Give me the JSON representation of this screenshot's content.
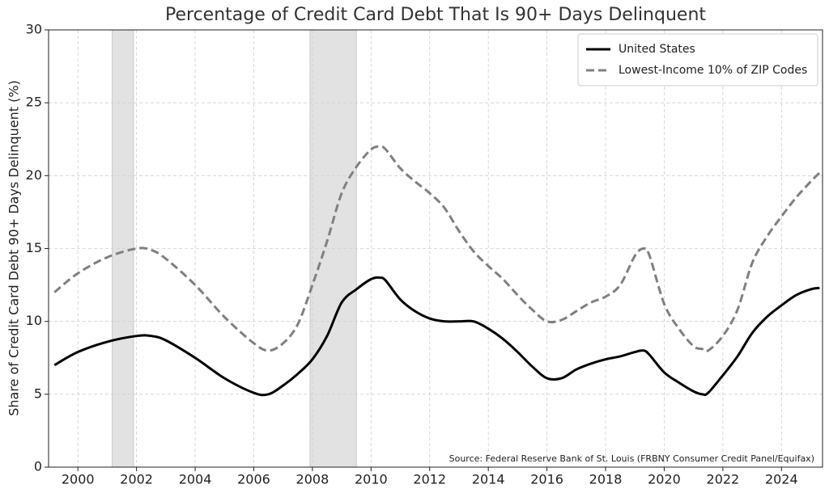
{
  "chart_data": {
    "type": "line",
    "title": "Percentage of Credit Card Debt That Is 90+ Days Delinquent",
    "y_label": "Share of Credit Card Debt 90+ Days Delinquent (%)",
    "source": "Source: Federal Reserve Bank of St. Louis (FRBNY Consumer Credit Panel/Equifax)",
    "x": [
      1999.2,
      2000,
      2001,
      2002,
      2002.5,
      2003,
      2004,
      2005,
      2006,
      2006.5,
      2007,
      2007.5,
      2008,
      2008.5,
      2009,
      2009.5,
      2010,
      2010.3,
      2010.5,
      2011,
      2011.5,
      2012,
      2012.5,
      2013,
      2013.5,
      2014,
      2014.5,
      2015,
      2015.5,
      2016,
      2016.5,
      2017,
      2017.5,
      2018,
      2018.5,
      2019,
      2019.3,
      2019.5,
      2020,
      2020.5,
      2021,
      2021.3,
      2021.5,
      2022,
      2022.5,
      2023,
      2023.5,
      2024,
      2024.5,
      2025,
      2025.3
    ],
    "series": [
      {
        "name": "United States",
        "color": "#000000",
        "dash": "solid",
        "values": [
          7.0,
          7.9,
          8.6,
          9.0,
          9.0,
          8.7,
          7.5,
          6.1,
          5.1,
          5.0,
          5.6,
          6.4,
          7.4,
          9.0,
          11.3,
          12.2,
          12.9,
          13.0,
          12.8,
          11.5,
          10.7,
          10.2,
          10.0,
          10.0,
          10.0,
          9.5,
          8.8,
          7.9,
          6.9,
          6.1,
          6.1,
          6.7,
          7.1,
          7.4,
          7.6,
          7.9,
          8.0,
          7.7,
          6.5,
          5.8,
          5.2,
          5.0,
          5.1,
          6.3,
          7.6,
          9.2,
          10.3,
          11.1,
          11.8,
          12.2,
          12.3
        ]
      },
      {
        "name": "Lowest-Income 10% of ZIP Codes",
        "color": "#808080",
        "dash": "dashed",
        "values": [
          12.0,
          13.3,
          14.4,
          15.0,
          14.9,
          14.3,
          12.5,
          10.3,
          8.5,
          8.0,
          8.5,
          9.8,
          12.5,
          15.5,
          18.8,
          20.6,
          21.8,
          22.0,
          21.8,
          20.5,
          19.6,
          18.8,
          17.8,
          16.2,
          14.8,
          13.8,
          12.9,
          11.8,
          10.8,
          10.0,
          10.1,
          10.7,
          11.3,
          11.7,
          12.5,
          14.5,
          15.0,
          14.5,
          11.2,
          9.5,
          8.3,
          8.1,
          8.0,
          9.0,
          10.8,
          14.0,
          15.8,
          17.2,
          18.5,
          19.6,
          20.2
        ]
      }
    ],
    "shaded_periods": [
      [
        2001.17,
        2001.9
      ],
      [
        2007.92,
        2009.5
      ]
    ],
    "shade_color": "#e2e2e2",
    "xlim": [
      1999,
      2025.4
    ],
    "xticks": [
      2000,
      2002,
      2004,
      2006,
      2008,
      2010,
      2012,
      2014,
      2016,
      2018,
      2020,
      2022,
      2024
    ],
    "ylim": [
      0,
      30
    ],
    "yticks": [
      0,
      5,
      10,
      15,
      20,
      25,
      30
    ],
    "grid": true,
    "legend": "upper right"
  }
}
